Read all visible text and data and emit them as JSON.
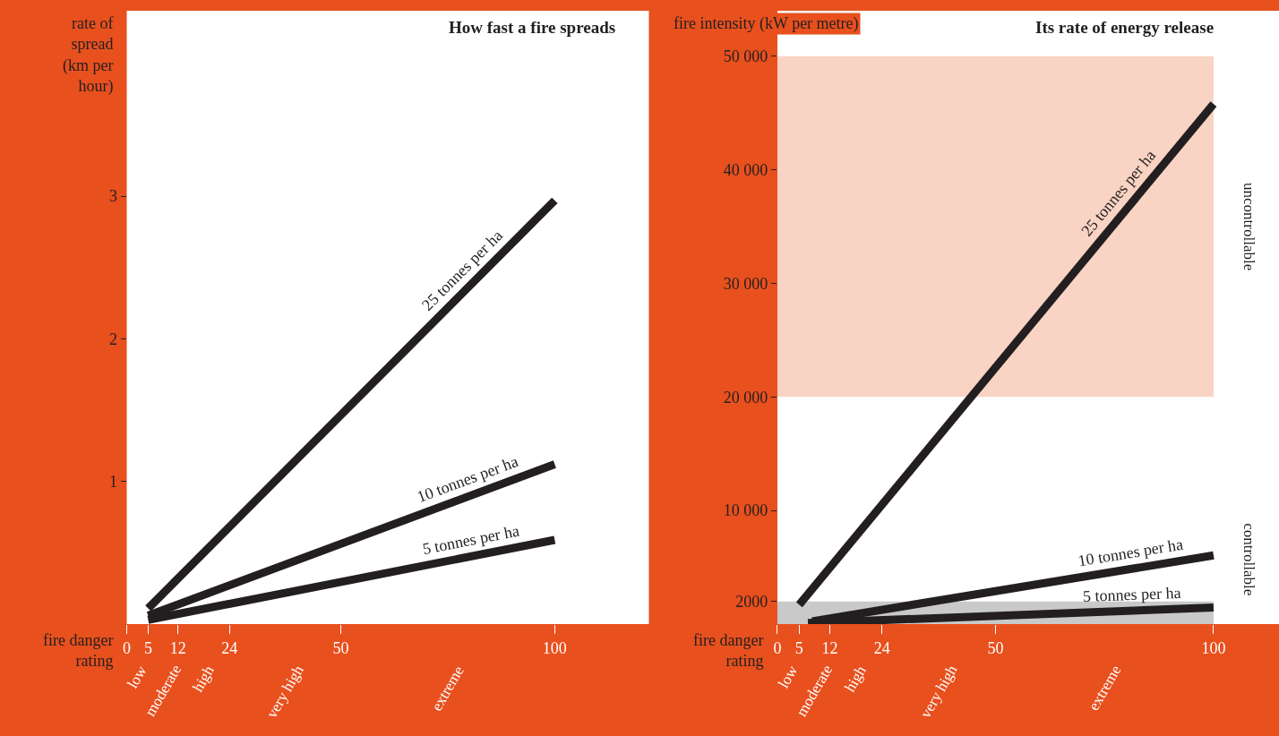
{
  "chart_data": [
    {
      "type": "line",
      "title": "How fast a fire spreads",
      "ylabel": "rate of spread (km per hour)",
      "xlabel": "fire danger rating",
      "xlim": [
        0,
        122
      ],
      "xticks": [
        0,
        5,
        12,
        24,
        50,
        100
      ],
      "ylim": [
        0,
        4.3
      ],
      "yticks": [
        1,
        2,
        3
      ],
      "grid": false,
      "marker": "none",
      "line_style": "solid",
      "series": [
        {
          "name": "25 tonnes per ha",
          "color": "#231f20",
          "x": [
            5,
            100
          ],
          "values": [
            0.11,
            2.97
          ]
        },
        {
          "name": "10 tonnes per ha",
          "color": "#231f20",
          "x": [
            5,
            100
          ],
          "values": [
            0.06,
            1.12
          ]
        },
        {
          "name": "5 tonnes per ha",
          "color": "#231f20",
          "x": [
            5,
            100
          ],
          "values": [
            0.03,
            0.59
          ]
        }
      ],
      "annotations": [
        "low",
        "moderate",
        "high",
        "very high",
        "extreme"
      ]
    },
    {
      "type": "line",
      "title": "Its rate of energy release",
      "ylabel": "fire intensity (kW per metre)",
      "xlabel": "fire danger rating",
      "xlim": [
        0,
        115
      ],
      "xticks": [
        0,
        5,
        12,
        24,
        50,
        100
      ],
      "ylim": [
        0,
        54000
      ],
      "yticks": [
        2000,
        {
          "value": 10000,
          "label": "10 000"
        },
        {
          "value": 20000,
          "label": "20 000"
        },
        {
          "value": 30000,
          "label": "30 000"
        },
        {
          "value": 40000,
          "label": "40 000"
        },
        {
          "value": 50000,
          "label": "50 000"
        }
      ],
      "grid": false,
      "marker": "none",
      "line_style": "solid",
      "series": [
        {
          "name": "25 tonnes per ha",
          "color": "#231f20",
          "x": [
            5,
            100
          ],
          "values": [
            1700,
            45800
          ]
        },
        {
          "name": "10 tonnes per ha",
          "color": "#231f20",
          "x": [
            8,
            100
          ],
          "values": [
            250,
            6050
          ]
        },
        {
          "name": "5 tonnes per ha",
          "color": "#231f20",
          "x": [
            7,
            100
          ],
          "values": [
            100,
            1450
          ]
        }
      ],
      "bands": [
        {
          "axis": "y",
          "from": 20000,
          "to": 50000,
          "label": "uncontrollable",
          "color": "#f9d3c3"
        },
        {
          "axis": "y",
          "from": 0,
          "to": 2000,
          "label": "controllable",
          "color": "#c9c9c9"
        }
      ],
      "annotations": [
        "low",
        "moderate",
        "high",
        "very high",
        "extreme"
      ]
    }
  ]
}
